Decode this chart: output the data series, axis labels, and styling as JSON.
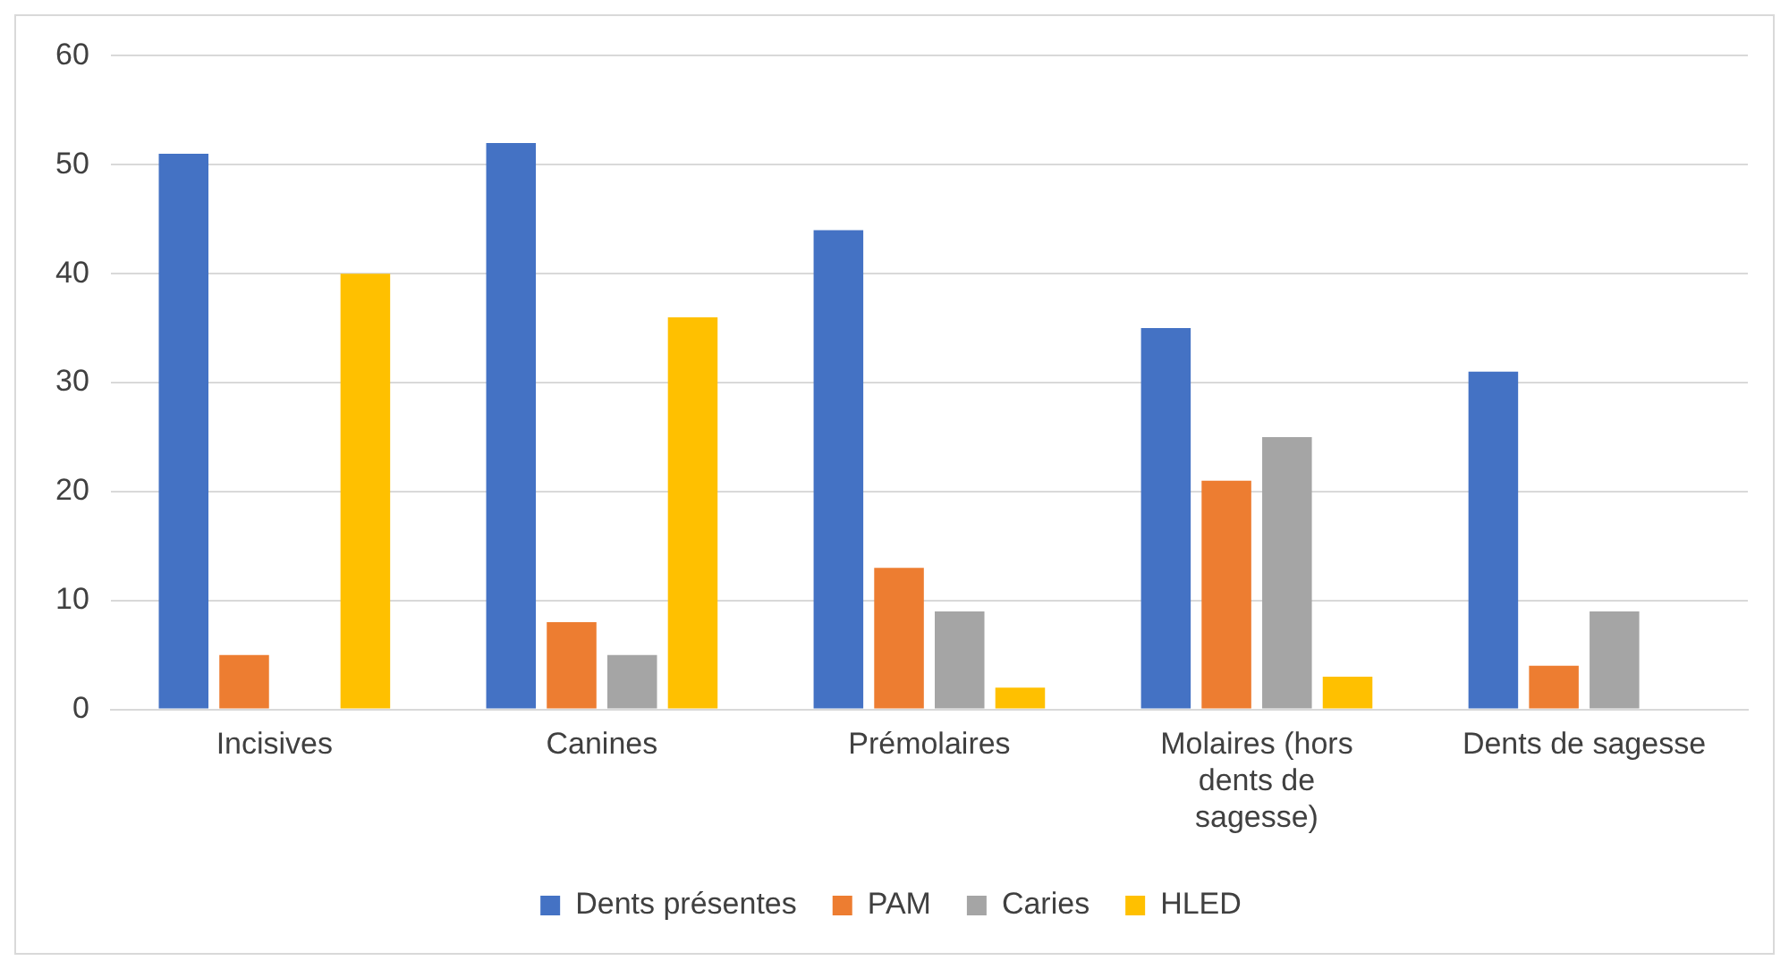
{
  "chart_data": {
    "type": "bar",
    "categories": [
      "Incisives",
      "Canines",
      "Prémolaires",
      "Molaires (hors dents de sagesse)",
      "Dents de sagesse"
    ],
    "series": [
      {
        "name": "Dents présentes",
        "color": "#4472c4",
        "values": [
          51,
          52,
          44,
          35,
          31
        ]
      },
      {
        "name": "PAM",
        "color": "#ed7d31",
        "values": [
          5,
          8,
          13,
          21,
          4
        ]
      },
      {
        "name": "Caries",
        "color": "#a5a5a5",
        "values": [
          0,
          5,
          9,
          25,
          9
        ]
      },
      {
        "name": "HLED",
        "color": "#ffc000",
        "values": [
          40,
          36,
          2,
          3,
          0
        ]
      }
    ],
    "ylim": [
      0,
      60
    ],
    "yticks": [
      0,
      10,
      20,
      30,
      40,
      50,
      60
    ],
    "grid": "y",
    "legend": "bottom"
  }
}
